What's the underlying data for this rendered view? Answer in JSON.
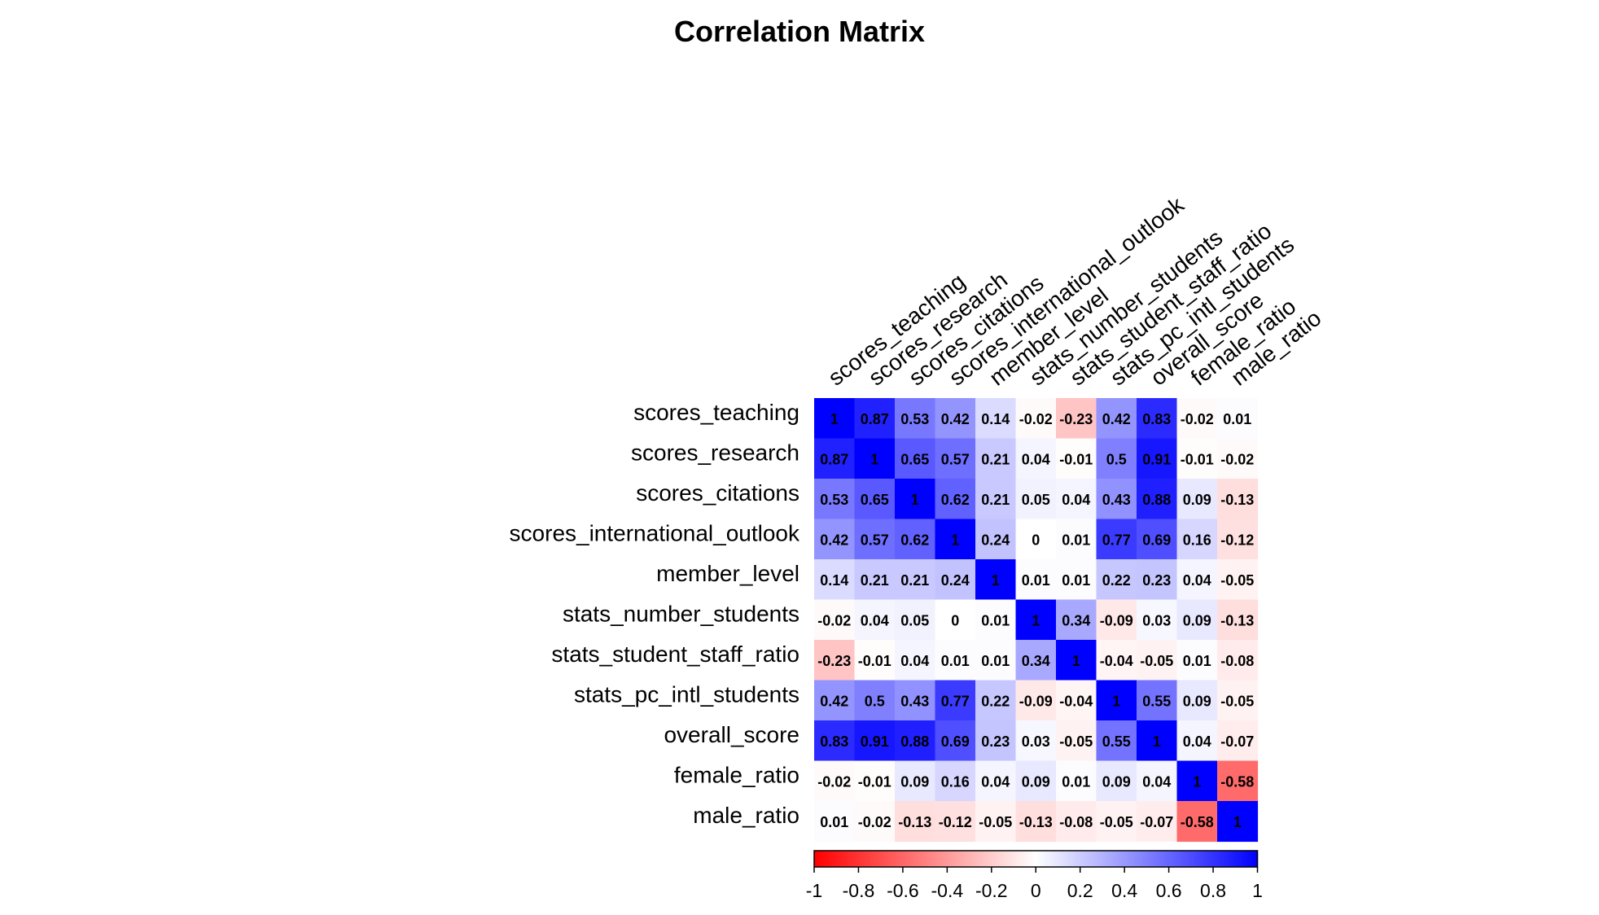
{
  "chart_data": {
    "type": "heatmap",
    "title": "Correlation Matrix",
    "variables": [
      "scores_teaching",
      "scores_research",
      "scores_citations",
      "scores_international_outlook",
      "member_level",
      "stats_number_students",
      "stats_student_staff_ratio",
      "stats_pc_intl_students",
      "overall_score",
      "female_ratio",
      "male_ratio"
    ],
    "matrix": [
      [
        1,
        0.87,
        0.53,
        0.42,
        0.14,
        -0.02,
        -0.23,
        0.42,
        0.83,
        -0.02,
        0.01
      ],
      [
        0.87,
        1,
        0.65,
        0.57,
        0.21,
        0.04,
        -0.01,
        0.5,
        0.91,
        -0.01,
        -0.02
      ],
      [
        0.53,
        0.65,
        1,
        0.62,
        0.21,
        0.05,
        0.04,
        0.43,
        0.88,
        0.09,
        -0.13
      ],
      [
        0.42,
        0.57,
        0.62,
        1,
        0.24,
        0,
        0.01,
        0.77,
        0.69,
        0.16,
        -0.12
      ],
      [
        0.14,
        0.21,
        0.21,
        0.24,
        1,
        0.01,
        0.01,
        0.22,
        0.23,
        0.04,
        -0.05
      ],
      [
        -0.02,
        0.04,
        0.05,
        0,
        0.01,
        1,
        0.34,
        -0.09,
        0.03,
        0.09,
        -0.13
      ],
      [
        -0.23,
        -0.01,
        0.04,
        0.01,
        0.01,
        0.34,
        1,
        -0.04,
        -0.05,
        0.01,
        -0.08
      ],
      [
        0.42,
        0.5,
        0.43,
        0.77,
        0.22,
        -0.09,
        -0.04,
        1,
        0.55,
        0.09,
        -0.05
      ],
      [
        0.83,
        0.91,
        0.88,
        0.69,
        0.23,
        0.03,
        -0.05,
        0.55,
        1,
        0.04,
        -0.07
      ],
      [
        -0.02,
        -0.01,
        0.09,
        0.16,
        0.04,
        0.09,
        0.01,
        0.09,
        0.04,
        1,
        -0.58
      ],
      [
        0.01,
        -0.02,
        -0.13,
        -0.12,
        -0.05,
        -0.13,
        -0.08,
        -0.05,
        -0.07,
        -0.58,
        1
      ]
    ],
    "colorbar": {
      "range": [
        -1,
        1
      ],
      "ticks": [
        "-1",
        "-0.8",
        "-0.6",
        "-0.4",
        "-0.2",
        "0",
        "0.2",
        "0.4",
        "0.6",
        "0.8",
        "1"
      ],
      "colors": {
        "low": "#ff0000",
        "mid": "#ffffff",
        "high": "#0000ff"
      }
    }
  }
}
